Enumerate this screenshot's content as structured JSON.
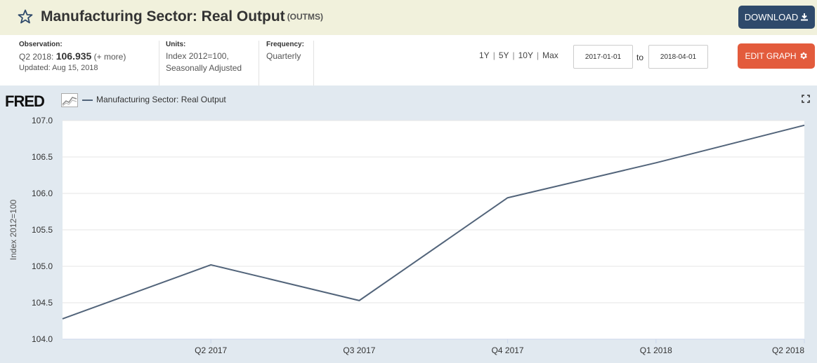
{
  "header": {
    "title": "Manufacturing Sector: Real Output",
    "series_id": "(OUTMS)",
    "download_label": "DOWNLOAD"
  },
  "meta": {
    "observation_label": "Observation:",
    "observation_period": "Q2 2018:",
    "observation_value": "106.935",
    "observation_more": "(+ more)",
    "updated": "Updated: Aug 15, 2018",
    "units_label": "Units:",
    "units_line1": "Index 2012=100,",
    "units_line2": "Seasonally Adjusted",
    "frequency_label": "Frequency:",
    "frequency_value": "Quarterly"
  },
  "controls": {
    "range_1y": "1Y",
    "range_5y": "5Y",
    "range_10y": "10Y",
    "range_max": "Max",
    "separator": "|",
    "start_date": "2017-01-01",
    "to_label": "to",
    "end_date": "2018-04-01",
    "edit_label": "EDIT GRAPH"
  },
  "legend": {
    "logo": "FRED",
    "series_label": "Manufacturing Sector: Real Output"
  },
  "colors": {
    "line": "#52647a",
    "download_bg": "#2f4a6b",
    "edit_bg": "#e35b3c",
    "header_bg": "#f1f1dc",
    "chart_bg": "#e1e9f0"
  },
  "chart_data": {
    "type": "line",
    "x": [
      "2017-01-01",
      "2017-04-01",
      "2017-07-01",
      "2017-10-01",
      "2018-01-01",
      "2018-04-01"
    ],
    "x_tick_labels": [
      "Q2 2017",
      "Q3 2017",
      "Q4 2017",
      "Q1 2018",
      "Q2 2018"
    ],
    "series": [
      {
        "name": "Manufacturing Sector: Real Output",
        "values": [
          104.28,
          105.02,
          104.53,
          105.94,
          106.42,
          106.935
        ]
      }
    ],
    "ylabel": "Index 2012=100",
    "ylim": [
      104.0,
      107.0
    ],
    "yticks": [
      "104.0",
      "104.5",
      "105.0",
      "105.5",
      "106.0",
      "106.5",
      "107.0"
    ],
    "grid": true,
    "legend_position": "top-left"
  }
}
